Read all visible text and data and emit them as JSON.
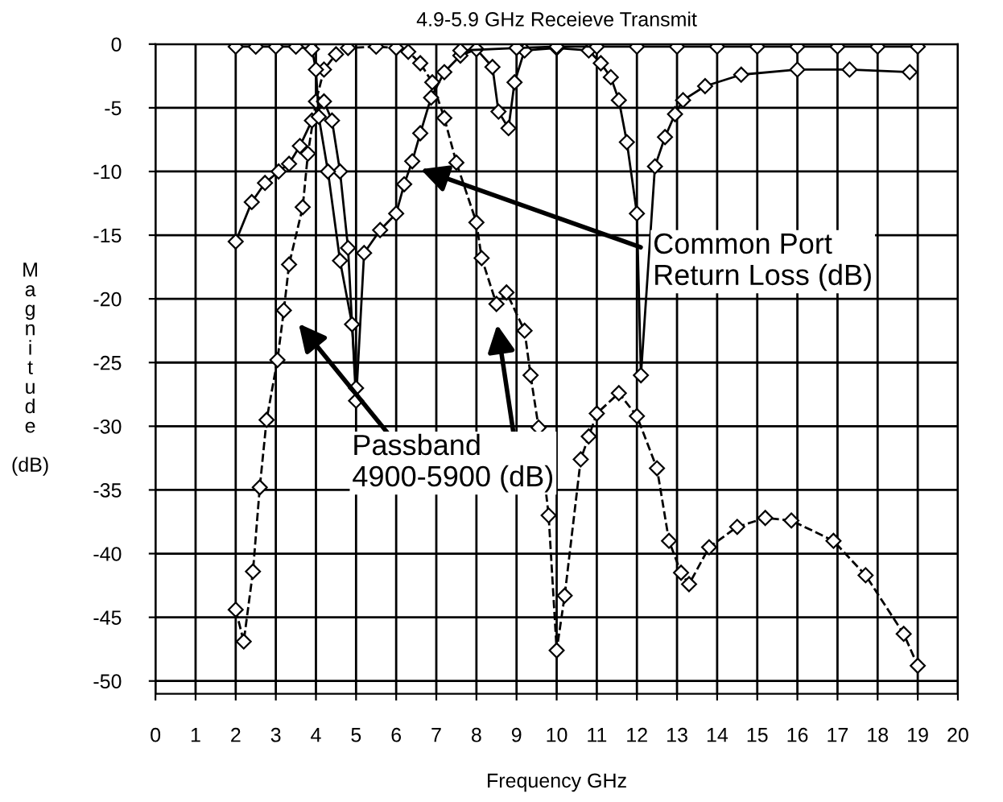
{
  "chart_data": {
    "type": "line",
    "title": "4.9-5.9 GHz Receieve Transmit",
    "xlabel": "Frequency GHz",
    "ylabel": "Magnitude (dB)",
    "xlim": [
      0,
      20
    ],
    "xticks": [
      0,
      1,
      2,
      3,
      4,
      5,
      6,
      7,
      8,
      9,
      10,
      11,
      12,
      13,
      14,
      15,
      16,
      17,
      18,
      19,
      20
    ],
    "ylim": [
      -51,
      0
    ],
    "yticks": [
      0,
      -5,
      -10,
      -15,
      -20,
      -25,
      -30,
      -35,
      -40,
      -45,
      -50
    ],
    "grid": true,
    "legend": false,
    "marker": "diamond",
    "series": [
      {
        "color": "#000000",
        "line_style": "dashed",
        "x": [
          2,
          2.2,
          2.43,
          2.6,
          2.77,
          3.04,
          3.2,
          3.33,
          3.67,
          3.8,
          4.0,
          4.2,
          4.5,
          4.8,
          5.5,
          6.0,
          6.3,
          6.6,
          6.9,
          7.2,
          7.5,
          8.0,
          8.13,
          8.5,
          8.75,
          9.2,
          9.35,
          9.55,
          9.8,
          10,
          10.2,
          10.6,
          10.8,
          11,
          11.55,
          12,
          12.5,
          12.8,
          13.1,
          13.3,
          13.8,
          14.5,
          15.2,
          15.85,
          16.9,
          17.7,
          18.65,
          19
        ],
        "values": [
          -44.4,
          -46.9,
          -41.4,
          -34.8,
          -29.5,
          -24.8,
          -20.9,
          -17.3,
          -12.8,
          -8.6,
          -4.5,
          -2,
          -0.8,
          -0.3,
          -0.2,
          -0.3,
          -0.6,
          -1.5,
          -3,
          -5.8,
          -9.3,
          -14,
          -16.8,
          -20.4,
          -19.5,
          -22.5,
          -26,
          -30.1,
          -37,
          -47.6,
          -43.3,
          -32.6,
          -30.8,
          -29,
          -27.4,
          -29.2,
          -33.3,
          -39,
          -41.5,
          -42.4,
          -39.5,
          -37.9,
          -37.2,
          -37.4,
          -39,
          -41.7,
          -46.3,
          -48.8
        ]
      },
      {
        "color": "#000000",
        "line_style": "solid",
        "x": [
          2,
          2.4,
          2.73,
          3.07,
          3.33,
          3.6,
          3.9,
          4.2,
          4.4,
          4.6,
          4.8,
          5.0,
          5.2,
          5.6,
          6.0,
          6.2,
          6.4,
          6.6,
          6.87,
          7.2,
          7.6,
          8.0,
          8.4,
          8.55,
          8.8,
          8.95,
          9.2,
          10,
          10.8,
          11.1,
          11.35,
          11.55,
          11.75,
          12.0,
          12.1,
          12.45,
          12.7,
          12.95,
          13.15,
          13.7,
          14.6,
          16,
          17.3,
          18.8
        ],
        "values": [
          -15.5,
          -12.4,
          -10.9,
          -10,
          -9.4,
          -8,
          -6,
          -4.5,
          -6,
          -10,
          -16,
          -28,
          -16.4,
          -14.6,
          -13.3,
          -11,
          -9.2,
          -7,
          -4.2,
          -2.2,
          -0.9,
          -0.4,
          -1.8,
          -5.3,
          -6.6,
          -3,
          -0.5,
          -0.3,
          -0.5,
          -1.5,
          -2.6,
          -4.4,
          -7.7,
          -13.3,
          -26,
          -9.6,
          -7.3,
          -5.5,
          -4.4,
          -3.3,
          -2.4,
          -2,
          -2,
          -2.2
        ]
      },
      {
        "color": "#000000",
        "line_style": "solid",
        "x": [
          2,
          2.5,
          3,
          3.5,
          3.9,
          4.0,
          4.07,
          4.3,
          4.6,
          4.9,
          5.0,
          6.0,
          7.6,
          9,
          10,
          11,
          12,
          13,
          14,
          15,
          16,
          17,
          18,
          19
        ],
        "values": [
          -0.2,
          -0.2,
          -0.2,
          -0.2,
          -0.4,
          -2,
          -5.7,
          -10,
          -17,
          -22,
          -27,
          null,
          -0.5,
          -0.3,
          -0.2,
          -0.2,
          -0.2,
          -0.2,
          -0.2,
          -0.2,
          -0.2,
          -0.2,
          -0.2,
          -0.2
        ]
      }
    ],
    "annotations": [
      {
        "text": "Common Port\nReturn Loss (dB)",
        "x": 6.5,
        "y": -9.7
      },
      "Passband\n4900-5900 (dB)"
    ]
  }
}
